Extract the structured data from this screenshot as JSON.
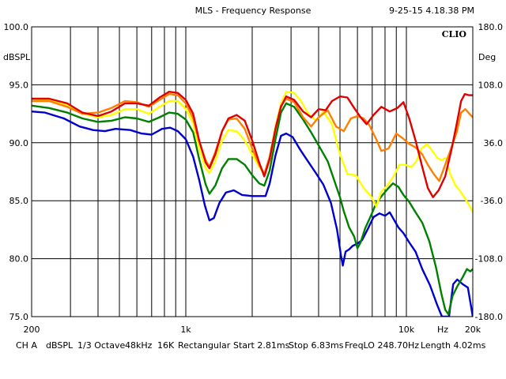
{
  "title": "MLS - Frequency Response",
  "timestamp": "9-25-15 4.18.38 PM",
  "brand": "CLIO",
  "chart_data": {
    "type": "line",
    "title": "MLS - Frequency Response",
    "xscale": "log",
    "xlim": [
      200,
      20000
    ],
    "ylim": [
      75,
      100
    ],
    "ylim_right": [
      -180,
      180
    ],
    "ylabel": "dBSPL",
    "ylabel_right": "Deg",
    "xlabel": "Hz",
    "grid": true,
    "x_tick_labels": [
      {
        "value": 200,
        "label": "200"
      },
      {
        "value": 1000,
        "label": "1k"
      },
      {
        "value": 10000,
        "label": "10k"
      },
      {
        "value": 20000,
        "label": "20k"
      }
    ],
    "y_tick_labels": [
      "75.0",
      "80.0",
      "85.0",
      "90.0",
      "95.0",
      "100.0"
    ],
    "y_right_tick_labels": [
      "-180.0",
      "-108.0",
      "-36.0",
      "36.0",
      "108.0",
      "180.0"
    ],
    "series": [
      {
        "color": "#0000cc",
        "points": [
          [
            200,
            92.7
          ],
          [
            230,
            92.6
          ],
          [
            280,
            92.1
          ],
          [
            330,
            91.4
          ],
          [
            380,
            91.1
          ],
          [
            430,
            91.0
          ],
          [
            480,
            91.2
          ],
          [
            560,
            91.1
          ],
          [
            630,
            90.8
          ],
          [
            700,
            90.7
          ],
          [
            780,
            91.2
          ],
          [
            850,
            91.3
          ],
          [
            920,
            91.0
          ],
          [
            1000,
            90.3
          ],
          [
            1080,
            88.8
          ],
          [
            1150,
            86.8
          ],
          [
            1220,
            84.6
          ],
          [
            1280,
            83.3
          ],
          [
            1340,
            83.5
          ],
          [
            1420,
            84.8
          ],
          [
            1520,
            85.7
          ],
          [
            1650,
            85.9
          ],
          [
            1800,
            85.5
          ],
          [
            2000,
            85.4
          ],
          [
            2150,
            85.4
          ],
          [
            2300,
            85.4
          ],
          [
            2400,
            86.5
          ],
          [
            2550,
            88.9
          ],
          [
            2700,
            90.6
          ],
          [
            2850,
            90.8
          ],
          [
            3050,
            90.5
          ],
          [
            3300,
            89.4
          ],
          [
            3550,
            88.5
          ],
          [
            3850,
            87.5
          ],
          [
            4200,
            86.4
          ],
          [
            4550,
            84.8
          ],
          [
            4850,
            82.5
          ],
          [
            5050,
            80.3
          ],
          [
            5150,
            79.4
          ],
          [
            5300,
            80.6
          ],
          [
            5500,
            80.8
          ],
          [
            5700,
            81.1
          ],
          [
            6000,
            81.3
          ],
          [
            6300,
            81.6
          ],
          [
            6700,
            82.6
          ],
          [
            7100,
            83.6
          ],
          [
            7550,
            83.9
          ],
          [
            8000,
            83.7
          ],
          [
            8400,
            84.0
          ],
          [
            8700,
            83.5
          ],
          [
            9200,
            82.7
          ],
          [
            9700,
            82.2
          ],
          [
            10300,
            81.4
          ],
          [
            11000,
            80.6
          ],
          [
            11800,
            79.1
          ],
          [
            12800,
            77.7
          ],
          [
            13800,
            76.0
          ],
          [
            14500,
            75.0
          ],
          [
            15600,
            75.0
          ],
          [
            16300,
            77.8
          ],
          [
            17000,
            78.2
          ],
          [
            18000,
            77.8
          ],
          [
            19000,
            77.5
          ],
          [
            20000,
            75.0
          ]
        ]
      },
      {
        "color": "#008000",
        "points": [
          [
            200,
            93.2
          ],
          [
            240,
            93.0
          ],
          [
            290,
            92.6
          ],
          [
            340,
            92.1
          ],
          [
            400,
            91.8
          ],
          [
            460,
            91.9
          ],
          [
            530,
            92.2
          ],
          [
            600,
            92.1
          ],
          [
            680,
            91.8
          ],
          [
            760,
            92.2
          ],
          [
            840,
            92.6
          ],
          [
            920,
            92.5
          ],
          [
            1000,
            92.0
          ],
          [
            1080,
            90.9
          ],
          [
            1150,
            88.6
          ],
          [
            1230,
            86.4
          ],
          [
            1280,
            85.6
          ],
          [
            1360,
            86.3
          ],
          [
            1460,
            87.8
          ],
          [
            1560,
            88.6
          ],
          [
            1700,
            88.6
          ],
          [
            1850,
            88.1
          ],
          [
            2000,
            87.2
          ],
          [
            2150,
            86.5
          ],
          [
            2270,
            86.3
          ],
          [
            2400,
            87.6
          ],
          [
            2550,
            90.3
          ],
          [
            2700,
            92.6
          ],
          [
            2850,
            93.4
          ],
          [
            3100,
            93.1
          ],
          [
            3400,
            92.0
          ],
          [
            3700,
            90.9
          ],
          [
            4050,
            89.6
          ],
          [
            4400,
            88.4
          ],
          [
            4700,
            86.8
          ],
          [
            5000,
            85.3
          ],
          [
            5200,
            84.1
          ],
          [
            5500,
            82.7
          ],
          [
            5800,
            81.9
          ],
          [
            6000,
            80.9
          ],
          [
            6200,
            81.4
          ],
          [
            6500,
            82.6
          ],
          [
            6900,
            83.7
          ],
          [
            7300,
            84.8
          ],
          [
            7800,
            85.5
          ],
          [
            8300,
            86.1
          ],
          [
            8700,
            86.5
          ],
          [
            9200,
            86.2
          ],
          [
            9700,
            85.5
          ],
          [
            10300,
            84.9
          ],
          [
            11000,
            84.0
          ],
          [
            11800,
            83.1
          ],
          [
            12700,
            81.5
          ],
          [
            13600,
            79.3
          ],
          [
            14400,
            77.0
          ],
          [
            15000,
            75.6
          ],
          [
            15500,
            75.2
          ],
          [
            16200,
            76.8
          ],
          [
            17000,
            77.6
          ],
          [
            18000,
            78.4
          ],
          [
            18800,
            79.1
          ],
          [
            19500,
            78.9
          ],
          [
            20000,
            79.1
          ]
        ]
      },
      {
        "color": "#ffff00",
        "points": [
          [
            200,
            93.8
          ],
          [
            240,
            93.7
          ],
          [
            290,
            93.3
          ],
          [
            340,
            92.5
          ],
          [
            400,
            92.2
          ],
          [
            460,
            92.4
          ],
          [
            530,
            92.9
          ],
          [
            600,
            92.9
          ],
          [
            680,
            92.5
          ],
          [
            760,
            93.1
          ],
          [
            840,
            93.6
          ],
          [
            920,
            93.6
          ],
          [
            1000,
            92.9
          ],
          [
            1080,
            91.7
          ],
          [
            1150,
            89.5
          ],
          [
            1230,
            87.8
          ],
          [
            1280,
            87.4
          ],
          [
            1360,
            88.4
          ],
          [
            1460,
            90.2
          ],
          [
            1560,
            91.1
          ],
          [
            1700,
            91.0
          ],
          [
            1850,
            90.2
          ],
          [
            2000,
            89.0
          ],
          [
            2150,
            87.9
          ],
          [
            2270,
            87.3
          ],
          [
            2400,
            88.7
          ],
          [
            2550,
            91.4
          ],
          [
            2700,
            93.4
          ],
          [
            2850,
            94.4
          ],
          [
            3100,
            94.3
          ],
          [
            3300,
            93.7
          ],
          [
            3600,
            92.5
          ],
          [
            3900,
            91.9
          ],
          [
            4200,
            92.7
          ],
          [
            4600,
            91.6
          ],
          [
            5000,
            89.0
          ],
          [
            5400,
            87.3
          ],
          [
            5900,
            87.2
          ],
          [
            6400,
            86.1
          ],
          [
            6900,
            85.4
          ],
          [
            7300,
            84.5
          ],
          [
            7700,
            85.8
          ],
          [
            8200,
            86.3
          ],
          [
            8800,
            87.2
          ],
          [
            9300,
            88.1
          ],
          [
            9900,
            88.1
          ],
          [
            10500,
            87.9
          ],
          [
            11100,
            88.4
          ],
          [
            11700,
            89.5
          ],
          [
            12400,
            89.9
          ],
          [
            13100,
            89.3
          ],
          [
            13800,
            88.7
          ],
          [
            14400,
            88.5
          ],
          [
            15100,
            88.7
          ],
          [
            15800,
            87.3
          ],
          [
            16700,
            86.3
          ],
          [
            17600,
            85.8
          ],
          [
            18700,
            85.0
          ],
          [
            19400,
            84.5
          ],
          [
            20000,
            84.0
          ]
        ]
      },
      {
        "color": "#ff8000",
        "points": [
          [
            200,
            93.6
          ],
          [
            240,
            93.6
          ],
          [
            290,
            93.1
          ],
          [
            340,
            92.5
          ],
          [
            400,
            92.6
          ],
          [
            460,
            93.0
          ],
          [
            530,
            93.6
          ],
          [
            600,
            93.5
          ],
          [
            680,
            93.1
          ],
          [
            760,
            93.7
          ],
          [
            840,
            94.2
          ],
          [
            920,
            94.1
          ],
          [
            1000,
            93.4
          ],
          [
            1080,
            92.1
          ],
          [
            1150,
            90.1
          ],
          [
            1230,
            88.5
          ],
          [
            1280,
            87.9
          ],
          [
            1360,
            89.2
          ],
          [
            1460,
            91.0
          ],
          [
            1560,
            92.0
          ],
          [
            1700,
            92.1
          ],
          [
            1850,
            91.2
          ],
          [
            2000,
            89.5
          ],
          [
            2150,
            88.1
          ],
          [
            2270,
            87.3
          ],
          [
            2400,
            88.8
          ],
          [
            2550,
            91.2
          ],
          [
            2700,
            93.2
          ],
          [
            2850,
            93.8
          ],
          [
            3100,
            93.5
          ],
          [
            3400,
            92.2
          ],
          [
            3700,
            91.4
          ],
          [
            4000,
            92.2
          ],
          [
            4400,
            92.8
          ],
          [
            4800,
            91.4
          ],
          [
            5200,
            91.0
          ],
          [
            5600,
            92.1
          ],
          [
            6000,
            92.3
          ],
          [
            6400,
            92.1
          ],
          [
            6800,
            91.5
          ],
          [
            7300,
            90.3
          ],
          [
            7700,
            89.3
          ],
          [
            8300,
            89.5
          ],
          [
            9000,
            90.8
          ],
          [
            9600,
            90.4
          ],
          [
            10300,
            89.9
          ],
          [
            11000,
            89.6
          ],
          [
            11800,
            89.0
          ],
          [
            12500,
            88.1
          ],
          [
            13300,
            87.3
          ],
          [
            14100,
            86.7
          ],
          [
            15000,
            88.1
          ],
          [
            16000,
            89.6
          ],
          [
            16900,
            90.9
          ],
          [
            17700,
            92.6
          ],
          [
            18500,
            92.9
          ],
          [
            19300,
            92.5
          ],
          [
            20000,
            92.2
          ]
        ]
      },
      {
        "color": "#e00000",
        "points": [
          [
            200,
            93.8
          ],
          [
            240,
            93.8
          ],
          [
            290,
            93.4
          ],
          [
            340,
            92.6
          ],
          [
            400,
            92.3
          ],
          [
            460,
            92.7
          ],
          [
            530,
            93.4
          ],
          [
            600,
            93.4
          ],
          [
            680,
            93.2
          ],
          [
            760,
            93.9
          ],
          [
            840,
            94.4
          ],
          [
            920,
            94.3
          ],
          [
            1000,
            93.7
          ],
          [
            1080,
            92.5
          ],
          [
            1150,
            90.2
          ],
          [
            1230,
            88.3
          ],
          [
            1280,
            87.8
          ],
          [
            1360,
            89.0
          ],
          [
            1460,
            91.0
          ],
          [
            1560,
            92.1
          ],
          [
            1700,
            92.4
          ],
          [
            1850,
            91.9
          ],
          [
            2000,
            90.2
          ],
          [
            2150,
            88.3
          ],
          [
            2270,
            87.1
          ],
          [
            2400,
            88.6
          ],
          [
            2550,
            91.2
          ],
          [
            2700,
            93.1
          ],
          [
            2850,
            94.0
          ],
          [
            3100,
            93.7
          ],
          [
            3400,
            92.7
          ],
          [
            3700,
            92.2
          ],
          [
            4000,
            92.9
          ],
          [
            4300,
            92.8
          ],
          [
            4600,
            93.6
          ],
          [
            5000,
            94.0
          ],
          [
            5400,
            93.9
          ],
          [
            5800,
            93.0
          ],
          [
            6200,
            92.2
          ],
          [
            6600,
            91.6
          ],
          [
            7100,
            92.4
          ],
          [
            7700,
            93.1
          ],
          [
            8400,
            92.7
          ],
          [
            9100,
            93.0
          ],
          [
            9700,
            93.5
          ],
          [
            10300,
            92.1
          ],
          [
            11000,
            90.2
          ],
          [
            11800,
            87.9
          ],
          [
            12500,
            86.1
          ],
          [
            13200,
            85.3
          ],
          [
            14000,
            85.9
          ],
          [
            15000,
            87.1
          ],
          [
            16000,
            89.4
          ],
          [
            16900,
            91.6
          ],
          [
            17700,
            93.6
          ],
          [
            18400,
            94.2
          ],
          [
            19200,
            94.1
          ],
          [
            20000,
            94.1
          ]
        ]
      }
    ]
  },
  "footer": {
    "channel": "CH A",
    "unit": "dBSPL",
    "smoothing": "1/3 Octave",
    "sample_rate": "48kHz",
    "size": "16K",
    "window": "Rectangular",
    "start": "Start 2.81ms",
    "stop": "Stop 6.83ms",
    "freqlo": "FreqLO 248.70Hz",
    "length": "Length 4.02ms"
  }
}
